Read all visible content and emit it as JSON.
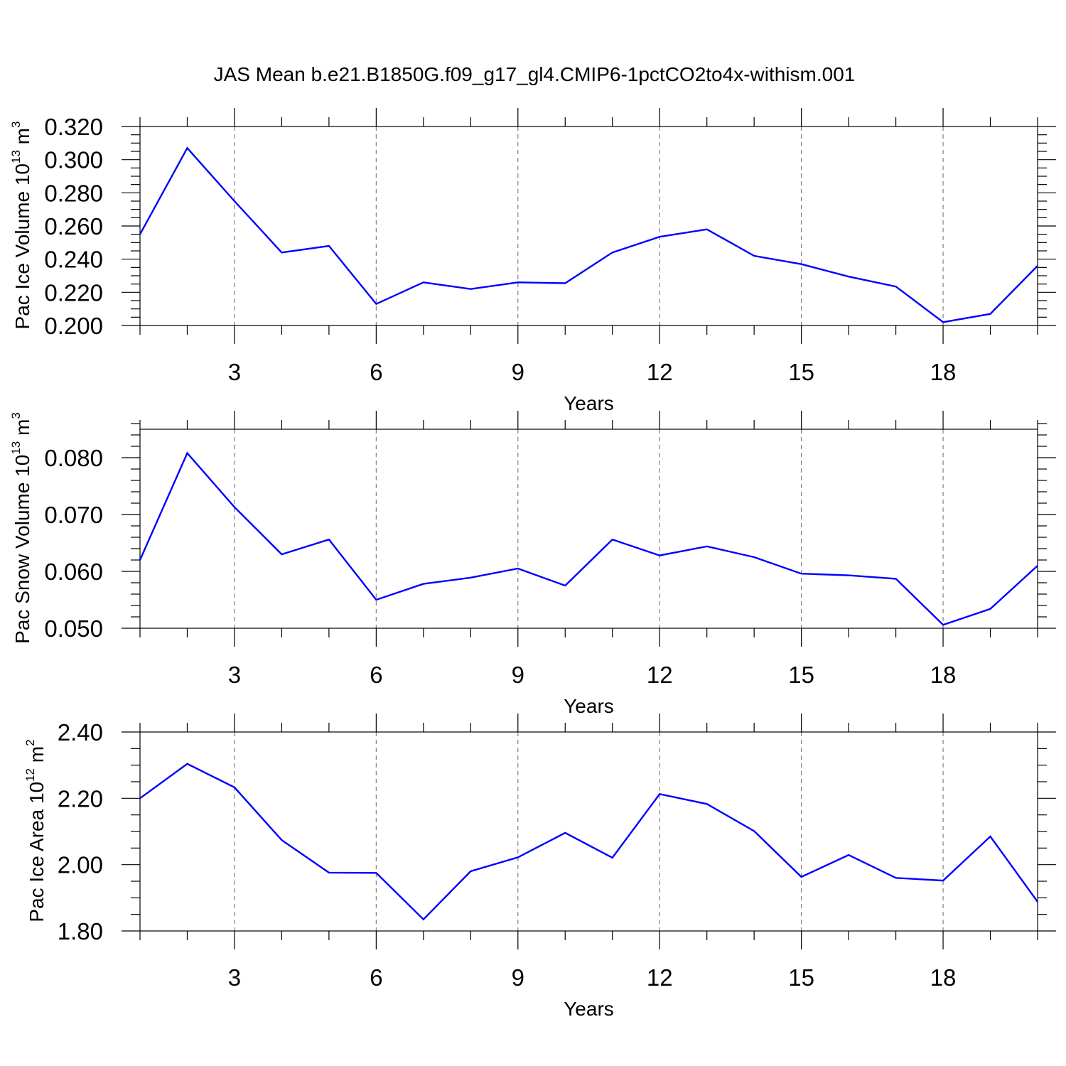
{
  "title": "JAS Mean b.e21.B1850G.f09_g17_gl4.CMIP6-1pctCO2to4x-withism.001",
  "colors": {
    "series": "#0000ff",
    "grid": "#808080",
    "axes": "#000000"
  },
  "chart_data": [
    {
      "type": "line",
      "xlabel": "Years",
      "ylabel": {
        "text": "Pac Ice Volume 10",
        "exp": "13",
        "unit": " m",
        "unit_exp": "3"
      },
      "xlim": [
        1,
        20
      ],
      "ylim": [
        0.2,
        0.32
      ],
      "x_ticks": [
        3,
        6,
        9,
        12,
        15,
        18
      ],
      "x_tick_labels": [
        "3",
        "6",
        "9",
        "12",
        "15",
        "18"
      ],
      "y_ticks": [
        0.2,
        0.22,
        0.24,
        0.26,
        0.28,
        0.3,
        0.32
      ],
      "y_tick_labels": [
        "0.200",
        "0.220",
        "0.240",
        "0.260",
        "0.280",
        "0.300",
        "0.320"
      ],
      "y_minor_step": 0.005,
      "x": [
        1,
        2,
        3,
        4,
        5,
        6,
        7,
        8,
        9,
        10,
        11,
        12,
        13,
        14,
        15,
        16,
        17,
        18,
        19,
        20
      ],
      "values": [
        0.255,
        0.307,
        0.275,
        0.244,
        0.248,
        0.213,
        0.226,
        0.222,
        0.226,
        0.2255,
        0.244,
        0.2535,
        0.258,
        0.242,
        0.237,
        0.2295,
        0.2235,
        0.202,
        0.207,
        0.236
      ],
      "grid": true
    },
    {
      "type": "line",
      "xlabel": "Years",
      "ylabel": {
        "text": "Pac Snow Volume 10",
        "exp": "13",
        "unit": " m",
        "unit_exp": "3"
      },
      "xlim": [
        1,
        20
      ],
      "ylim": [
        0.05,
        0.085
      ],
      "x_ticks": [
        3,
        6,
        9,
        12,
        15,
        18
      ],
      "x_tick_labels": [
        "3",
        "6",
        "9",
        "12",
        "15",
        "18"
      ],
      "y_ticks": [
        0.05,
        0.06,
        0.07,
        0.08
      ],
      "y_tick_labels": [
        "0.050",
        "0.060",
        "0.070",
        "0.080"
      ],
      "y_minor_step": 0.002,
      "x": [
        1,
        2,
        3,
        4,
        5,
        6,
        7,
        8,
        9,
        10,
        11,
        12,
        13,
        14,
        15,
        16,
        17,
        18,
        19,
        20
      ],
      "values": [
        0.062,
        0.0808,
        0.0713,
        0.063,
        0.0656,
        0.055,
        0.0578,
        0.0589,
        0.0605,
        0.0575,
        0.0656,
        0.0628,
        0.0644,
        0.0625,
        0.0596,
        0.0593,
        0.0587,
        0.0506,
        0.0534,
        0.061
      ],
      "grid": true
    },
    {
      "type": "line",
      "xlabel": "Years",
      "ylabel": {
        "text": "Pac Ice Area 10",
        "exp": "12",
        "unit": " m",
        "unit_exp": "2"
      },
      "xlim": [
        1,
        20
      ],
      "ylim": [
        1.8,
        2.4
      ],
      "x_ticks": [
        3,
        6,
        9,
        12,
        15,
        18
      ],
      "x_tick_labels": [
        "3",
        "6",
        "9",
        "12",
        "15",
        "18"
      ],
      "y_ticks": [
        1.8,
        2.0,
        2.2,
        2.4
      ],
      "y_tick_labels": [
        "1.80",
        "2.00",
        "2.20",
        "2.40"
      ],
      "y_minor_step": 0.05,
      "x": [
        1,
        2,
        3,
        4,
        5,
        6,
        7,
        8,
        9,
        10,
        11,
        12,
        13,
        14,
        15,
        16,
        17,
        18,
        19,
        20
      ],
      "values": [
        2.2,
        2.304,
        2.233,
        2.074,
        1.976,
        1.975,
        1.835,
        1.98,
        2.022,
        2.096,
        2.021,
        2.213,
        2.183,
        2.101,
        1.963,
        2.029,
        1.96,
        1.952,
        2.085,
        1.888
      ],
      "grid": true
    }
  ]
}
